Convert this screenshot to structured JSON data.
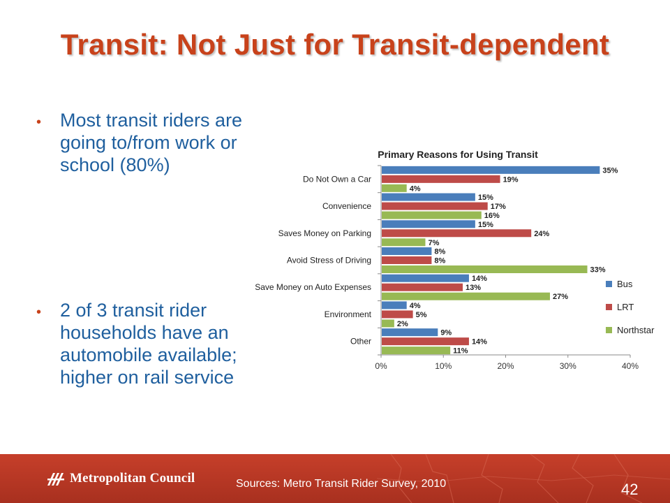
{
  "slide": {
    "title": "Transit: Not Just for Transit-dependent",
    "bullets": [
      "Most transit riders are going to/from work or school (80%)",
      "2 of 3 transit rider households have an automobile available; higher on rail service"
    ],
    "source": "Sources: Metro Transit Rider Survey, 2010",
    "page_number": "42",
    "logo_text": "Metropolitan Council",
    "colors": {
      "title": "#c8421b",
      "bullet_text": "#1f5f9e",
      "bullet_dot": "#c8421b",
      "footer": "#b5362a"
    }
  },
  "chart_data": {
    "type": "bar",
    "orientation": "horizontal",
    "title": "Primary Reasons for Using Transit",
    "categories": [
      "Do Not Own a Car",
      "Convenience",
      "Saves Money on Parking",
      "Avoid Stress of Driving",
      "Save Money on Auto Expenses",
      "Environment",
      "Other"
    ],
    "series": [
      {
        "name": "Bus",
        "color": "#4a7ebb",
        "values": [
          35,
          15,
          15,
          8,
          14,
          4,
          9
        ]
      },
      {
        "name": "LRT",
        "color": "#be4b48",
        "values": [
          19,
          17,
          24,
          8,
          13,
          5,
          14
        ]
      },
      {
        "name": "Northstar",
        "color": "#98b954",
        "values": [
          4,
          16,
          7,
          33,
          27,
          2,
          11
        ]
      }
    ],
    "value_format": "percent",
    "xlim": [
      0,
      40
    ],
    "x_ticks": [
      "0%",
      "10%",
      "20%",
      "30%",
      "40%"
    ],
    "grid": false,
    "legend": "right"
  }
}
